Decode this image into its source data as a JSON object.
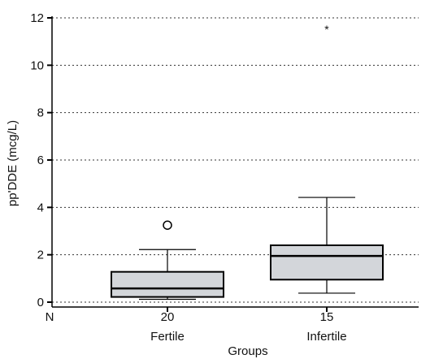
{
  "chart_data": {
    "type": "boxplot",
    "ylabel": "pp'DDE (mcg/L)",
    "xlabel": "Groups",
    "ylim": [
      0,
      12
    ],
    "y_ticks": [
      "0",
      "2",
      "4",
      "6",
      "8",
      "10",
      "12"
    ],
    "grid": true,
    "n_label": "N",
    "categories": [
      "Fertile",
      "Infertile"
    ],
    "n": [
      "20",
      "15"
    ],
    "boxes": [
      {
        "category": "Fertile",
        "whisker_low": 0.12,
        "q1": 0.22,
        "median": 0.58,
        "q3": 1.28,
        "whisker_high": 2.22,
        "outliers": [
          {
            "value": 3.25,
            "marker": "o"
          }
        ]
      },
      {
        "category": "Infertile",
        "whisker_low": 0.38,
        "q1": 0.95,
        "median": 1.95,
        "q3": 2.4,
        "whisker_high": 4.42,
        "outliers": [
          {
            "value": 11.55,
            "marker": "*"
          }
        ]
      }
    ]
  }
}
